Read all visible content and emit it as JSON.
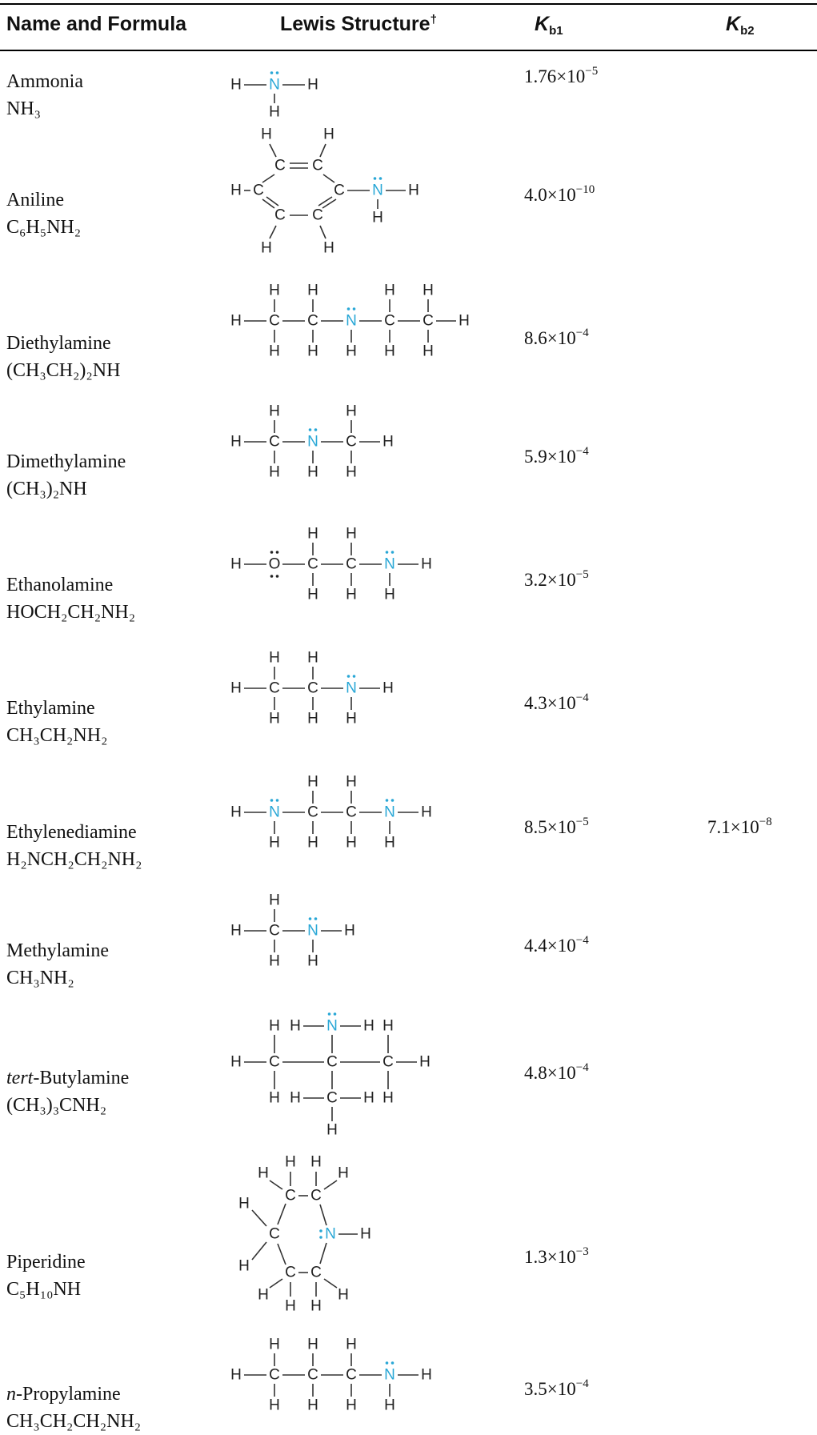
{
  "headers": {
    "name": "Name and Formula",
    "lewis": "Lewis Structure",
    "lewis_mark": "†",
    "kb1_main": "K",
    "kb1_sub": "b1",
    "kb2_main": "K",
    "kb2_sub": "b2"
  },
  "rows": [
    {
      "name": "Ammonia",
      "formula": "NH₃",
      "kb1_mant": "1.76×10",
      "kb1_exp": "−5",
      "kb2_mant": "",
      "kb2_exp": ""
    },
    {
      "name": "Aniline",
      "formula": "C₆H₅NH₂",
      "kb1_mant": "4.0×10",
      "kb1_exp": "−10",
      "kb2_mant": "",
      "kb2_exp": ""
    },
    {
      "name": "Diethylamine",
      "formula": "(CH₃CH₂)₂NH",
      "kb1_mant": "8.6×10",
      "kb1_exp": "−4",
      "kb2_mant": "",
      "kb2_exp": ""
    },
    {
      "name": "Dimethylamine",
      "formula": "(CH₃)₂NH",
      "kb1_mant": "5.9×10",
      "kb1_exp": "−4",
      "kb2_mant": "",
      "kb2_exp": ""
    },
    {
      "name": "Ethanolamine",
      "formula": "HOCH₂CH₂NH₂",
      "kb1_mant": "3.2×10",
      "kb1_exp": "−5",
      "kb2_mant": "",
      "kb2_exp": ""
    },
    {
      "name": "Ethylamine",
      "formula": "CH₃CH₂NH₂",
      "kb1_mant": "4.3×10",
      "kb1_exp": "−4",
      "kb2_mant": "",
      "kb2_exp": ""
    },
    {
      "name": "Ethylenediamine",
      "formula": "H₂NCH₂CH₂NH₂",
      "kb1_mant": "8.5×10",
      "kb1_exp": "−5",
      "kb2_mant": "7.1×10",
      "kb2_exp": "−8"
    },
    {
      "name": "Methylamine",
      "formula": "CH₃NH₂",
      "kb1_mant": "4.4×10",
      "kb1_exp": "−4",
      "kb2_mant": "",
      "kb2_exp": ""
    },
    {
      "name_prefix": "tert",
      "name": "-Butylamine",
      "formula": "(CH₃)₃CNH₂",
      "kb1_mant": "4.8×10",
      "kb1_exp": "−4",
      "kb2_mant": "",
      "kb2_exp": ""
    },
    {
      "name": "Piperidine",
      "formula": "C₅H₁₀NH",
      "kb1_mant": "1.3×10",
      "kb1_exp": "−3",
      "kb2_mant": "",
      "kb2_exp": ""
    },
    {
      "name_prefix": "n",
      "name": "-Propylamine",
      "formula": "CH₃CH₂CH₂NH₂",
      "kb1_mant": "3.5×10",
      "kb1_exp": "−4",
      "kb2_mant": "",
      "kb2_exp": ""
    }
  ],
  "atom_labels": {
    "H": "H",
    "C": "C",
    "N": "N",
    "O": "O"
  },
  "colors": {
    "nitrogen": "#29a7d6",
    "text": "#1a1a1a",
    "rule": "#000000"
  }
}
